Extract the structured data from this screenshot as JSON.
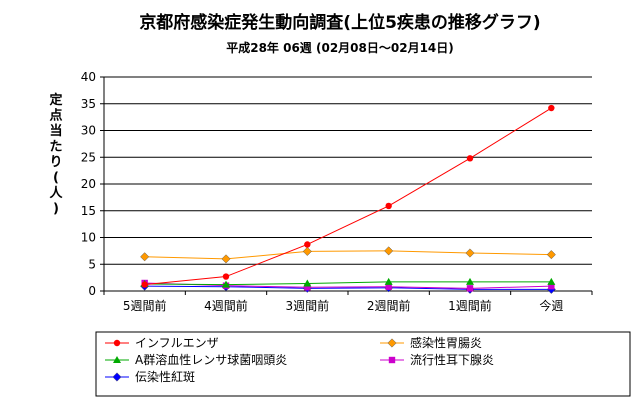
{
  "chart_data": {
    "type": "line",
    "title": "京都府感染症発生動向調査(上位5疾患の推移グラフ)",
    "subtitle": "平成28年 06週 (02月08日～02月14日)",
    "ylabel": "定点当たり(人)",
    "xlabel": "",
    "ylim": [
      0,
      40
    ],
    "yticks": [
      0,
      5,
      10,
      15,
      20,
      25,
      30,
      35,
      40
    ],
    "categories": [
      "5週間前",
      "4週間前",
      "3週間前",
      "2週間前",
      "1週間前",
      "今週"
    ],
    "grid": true,
    "legend_position": "bottom",
    "series": [
      {
        "name": "インフルエンザ",
        "color": "#ff0000",
        "marker": "circle",
        "values": [
          1.2,
          2.7,
          8.7,
          15.9,
          24.8,
          34.2
        ]
      },
      {
        "name": "感染性胃腸炎",
        "color": "#ff9900",
        "marker": "diamond",
        "values": [
          6.4,
          6.0,
          7.4,
          7.5,
          7.1,
          6.8
        ]
      },
      {
        "name": "A群溶血性レンサ球菌咽頭炎",
        "color": "#00aa00",
        "marker": "triangle",
        "values": [
          1.3,
          1.2,
          1.4,
          1.7,
          1.7,
          1.7
        ]
      },
      {
        "name": "流行性耳下腺炎",
        "color": "#cc00cc",
        "marker": "square",
        "values": [
          1.5,
          1.0,
          0.7,
          0.8,
          0.5,
          0.9
        ]
      },
      {
        "name": "伝染性紅斑",
        "color": "#0000ff",
        "marker": "diamond",
        "values": [
          0.9,
          0.8,
          0.5,
          0.6,
          0.3,
          0.3
        ]
      }
    ]
  }
}
